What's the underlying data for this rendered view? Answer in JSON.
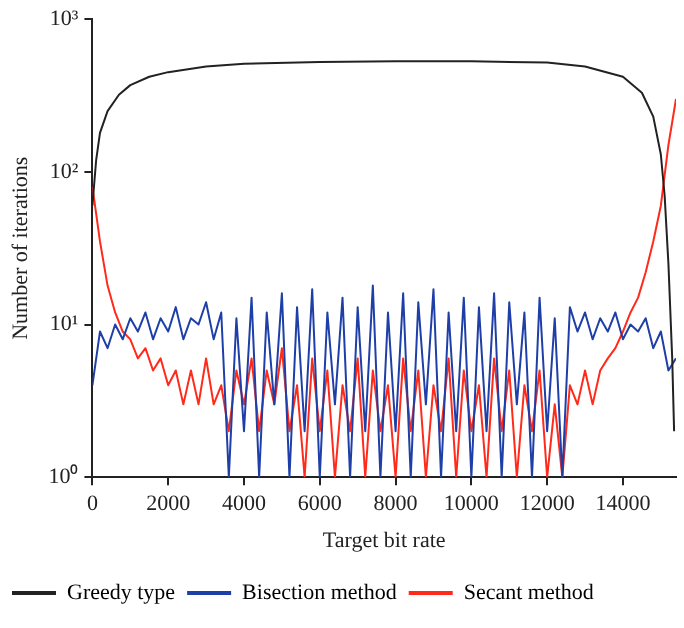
{
  "chart_data": {
    "type": "line",
    "xlabel": "Target bit rate",
    "ylabel": "Number of iterations",
    "log": "y",
    "grid": false,
    "legend": "bottom",
    "marker": "none",
    "line_style": "solid",
    "xlim": [
      0,
      15400
    ],
    "xticks": [
      0,
      2000,
      4000,
      6000,
      8000,
      10000,
      12000,
      14000
    ],
    "ylim": [
      1,
      1000
    ],
    "yticks": [
      {
        "value": 1,
        "label": "10⁰"
      },
      {
        "value": 10,
        "label": "10¹"
      },
      {
        "value": 100,
        "label": "10²"
      },
      {
        "value": 1000,
        "label": "10³"
      }
    ],
    "series": [
      {
        "name": "Greedy type",
        "color": "#222222",
        "x": [
          0,
          100,
          200,
          400,
          700,
          1000,
          1500,
          2000,
          3000,
          4000,
          6000,
          8000,
          10000,
          12000,
          13000,
          14000,
          14500,
          14800,
          15000,
          15100,
          15200,
          15300,
          15350
        ],
        "values": [
          60,
          120,
          180,
          250,
          320,
          370,
          420,
          450,
          490,
          510,
          525,
          530,
          530,
          520,
          490,
          420,
          330,
          230,
          130,
          70,
          25,
          6,
          2
        ]
      },
      {
        "name": "Bisection method",
        "color": "#1f3fa8",
        "x": [
          0,
          200,
          400,
          600,
          800,
          1000,
          1200,
          1400,
          1600,
          1800,
          2000,
          2200,
          2400,
          2600,
          2800,
          3000,
          3200,
          3400,
          3600,
          3800,
          4000,
          4200,
          4400,
          4600,
          4800,
          5000,
          5200,
          5400,
          5600,
          5800,
          6000,
          6200,
          6400,
          6600,
          6800,
          7000,
          7200,
          7400,
          7600,
          7800,
          8000,
          8200,
          8400,
          8600,
          8800,
          9000,
          9200,
          9400,
          9600,
          9800,
          10000,
          10200,
          10400,
          10600,
          10800,
          11000,
          11200,
          11400,
          11600,
          11800,
          12000,
          12200,
          12400,
          12600,
          12800,
          13000,
          13200,
          13400,
          13600,
          13800,
          14000,
          14200,
          14400,
          14600,
          14800,
          15000,
          15200,
          15400
        ],
        "values": [
          4,
          9,
          7,
          10,
          8,
          11,
          9,
          12,
          8,
          11,
          9,
          13,
          8,
          11,
          10,
          14,
          8,
          12,
          1,
          11,
          2,
          15,
          1,
          12,
          3,
          16,
          1,
          13,
          2,
          17,
          1,
          12,
          3,
          15,
          1,
          13,
          2,
          18,
          1,
          12,
          2,
          16,
          1,
          14,
          3,
          17,
          1,
          12,
          2,
          15,
          1,
          13,
          2,
          16,
          1,
          14,
          3,
          12,
          1,
          15,
          2,
          11,
          1,
          13,
          9,
          12,
          8,
          11,
          9,
          12,
          8,
          10,
          9,
          11,
          7,
          9,
          5,
          6
        ]
      },
      {
        "name": "Secant method",
        "color": "#ff2a1a",
        "x": [
          0,
          200,
          400,
          600,
          800,
          1000,
          1200,
          1400,
          1600,
          1800,
          2000,
          2200,
          2400,
          2600,
          2800,
          3000,
          3200,
          3400,
          3600,
          3800,
          4000,
          4200,
          4400,
          4600,
          4800,
          5000,
          5200,
          5400,
          5600,
          5800,
          6000,
          6200,
          6400,
          6600,
          6800,
          7000,
          7200,
          7400,
          7600,
          7800,
          8000,
          8200,
          8400,
          8600,
          8800,
          9000,
          9200,
          9400,
          9600,
          9800,
          10000,
          10200,
          10400,
          10600,
          10800,
          11000,
          11200,
          11400,
          11600,
          11800,
          12000,
          12200,
          12400,
          12600,
          12800,
          13000,
          13200,
          13400,
          13600,
          13800,
          14000,
          14200,
          14400,
          14600,
          14800,
          15000,
          15200,
          15400
        ],
        "values": [
          80,
          35,
          18,
          12,
          9,
          8,
          6,
          7,
          5,
          6,
          4,
          5,
          3,
          5,
          3,
          6,
          3,
          4,
          2,
          5,
          3,
          6,
          2,
          5,
          3,
          7,
          2,
          4,
          1,
          6,
          2,
          5,
          1,
          4,
          2,
          6,
          1,
          5,
          2,
          4,
          1,
          6,
          2,
          5,
          1,
          4,
          2,
          6,
          1,
          5,
          2,
          4,
          1,
          6,
          2,
          5,
          1,
          4,
          2,
          5,
          1,
          3,
          1,
          4,
          3,
          5,
          3,
          5,
          6,
          7,
          9,
          12,
          15,
          22,
          35,
          60,
          150,
          300
        ]
      }
    ]
  }
}
